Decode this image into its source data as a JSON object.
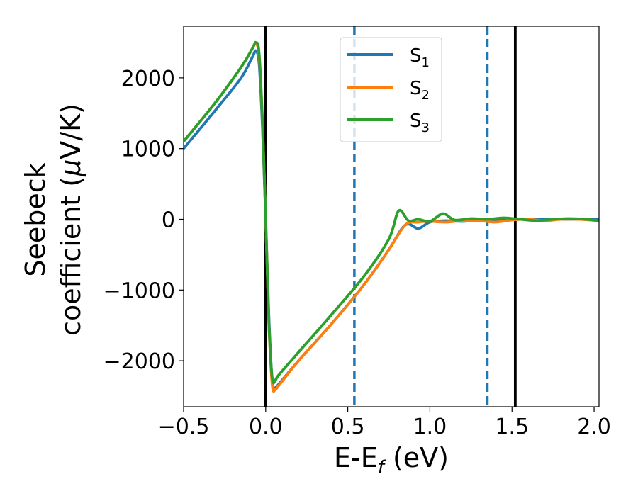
{
  "chart_data": {
    "type": "line",
    "xlabel": "E-E",
    "xlabel_sub": "f",
    "xlabel_unit": "(eV)",
    "ylabel_line1": "Seebeck",
    "ylabel_line2": "coefficient",
    "ylabel_unit_mu": "μ",
    "ylabel_unit_rest": "V/K)",
    "xlim": [
      -0.5,
      2.03
    ],
    "ylim": [
      -2650,
      2730
    ],
    "x_ticks": [
      -0.5,
      0.0,
      0.5,
      1.0,
      1.5,
      2.0
    ],
    "x_tick_labels": [
      "−0.5",
      "0.0",
      "0.5",
      "1.0",
      "1.5",
      "2.0"
    ],
    "y_ticks": [
      -2000,
      -1000,
      0,
      1000,
      2000
    ],
    "y_tick_labels": [
      "−2000",
      "−1000",
      "0",
      "1000",
      "2000"
    ],
    "grid": false,
    "legend_position": "top-center",
    "vlines_solid": [
      0.0,
      1.52
    ],
    "vlines_dashed": [
      0.54,
      1.35
    ],
    "colors": {
      "s1": "#1f77b4",
      "s2": "#ff7f0e",
      "s3": "#2ca02c",
      "solid_line": "#000000",
      "dashed_line": "#1f77b4"
    },
    "series": [
      {
        "name": "S",
        "sub": "1",
        "color": "#1f77b4",
        "x": [
          -0.5,
          -0.3,
          -0.15,
          -0.08,
          -0.06,
          -0.04,
          -0.02,
          0.0,
          0.02,
          0.04,
          0.06,
          0.08,
          0.2,
          0.4,
          0.6,
          0.75,
          0.85,
          0.93,
          1.0,
          1.1,
          1.2,
          1.3,
          1.4,
          1.5,
          1.6,
          1.7,
          1.8,
          1.9,
          2.03
        ],
        "y": [
          1000,
          1560,
          2000,
          2300,
          2380,
          2200,
          1300,
          0,
          -1400,
          -2300,
          -2380,
          -2330,
          -2000,
          -1480,
          -920,
          -430,
          -80,
          -130,
          -40,
          -20,
          -30,
          -10,
          -10,
          0,
          0,
          0,
          0,
          0,
          0
        ]
      },
      {
        "name": "S",
        "sub": "2",
        "color": "#ff7f0e",
        "x": [
          -0.5,
          -0.3,
          -0.15,
          -0.08,
          -0.06,
          -0.04,
          -0.02,
          0.0,
          0.02,
          0.04,
          0.06,
          0.08,
          0.2,
          0.4,
          0.6,
          0.75,
          0.85,
          0.93,
          1.0,
          1.1,
          1.2,
          1.3,
          1.4,
          1.5,
          1.6,
          1.7,
          1.8,
          1.9,
          2.03
        ],
        "y": [
          1100,
          1670,
          2150,
          2420,
          2490,
          2300,
          1400,
          0,
          -1500,
          -2350,
          -2400,
          -2350,
          -2000,
          -1480,
          -920,
          -430,
          -80,
          -40,
          -30,
          -40,
          -20,
          -20,
          -40,
          -10,
          0,
          -20,
          0,
          0,
          -20
        ]
      },
      {
        "name": "S",
        "sub": "3",
        "color": "#2ca02c",
        "x": [
          -0.5,
          -0.3,
          -0.15,
          -0.08,
          -0.06,
          -0.04,
          -0.02,
          0.0,
          0.02,
          0.04,
          0.06,
          0.08,
          0.2,
          0.4,
          0.6,
          0.75,
          0.81,
          0.87,
          0.93,
          1.0,
          1.08,
          1.15,
          1.25,
          1.35,
          1.45,
          1.55,
          1.65,
          1.75,
          1.85,
          1.95,
          2.03
        ],
        "y": [
          1100,
          1670,
          2150,
          2420,
          2500,
          2350,
          1400,
          0,
          -1500,
          -2250,
          -2270,
          -2200,
          -1880,
          -1350,
          -800,
          -280,
          120,
          -20,
          0,
          -30,
          80,
          -10,
          10,
          0,
          20,
          0,
          -20,
          0,
          10,
          0,
          -20
        ]
      }
    ]
  }
}
